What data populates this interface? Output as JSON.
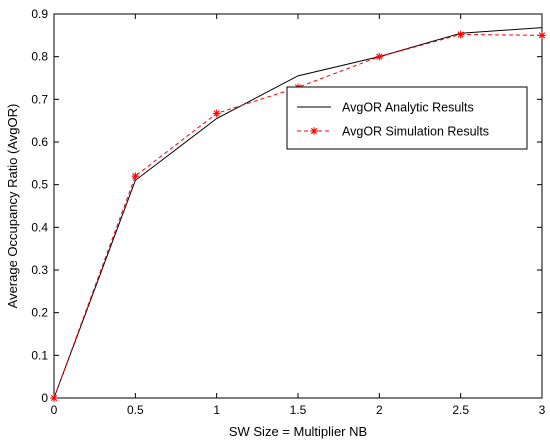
{
  "chart_data": {
    "type": "line",
    "xlabel": "SW Size = Multiplier NB",
    "ylabel": "Average Occupancy Ratio (AvgOR)",
    "xlim": [
      0,
      3
    ],
    "ylim": [
      0,
      0.9
    ],
    "x_ticks": [
      0,
      0.5,
      1,
      1.5,
      2,
      2.5,
      3
    ],
    "x_tick_labels": [
      "0",
      "0.5",
      "1",
      "1.5",
      "2",
      "2.5",
      "3"
    ],
    "y_ticks": [
      0,
      0.1,
      0.2,
      0.3,
      0.4,
      0.5,
      0.6,
      0.7,
      0.8,
      0.9
    ],
    "y_tick_labels": [
      "0",
      "0.1",
      "0.2",
      "0.3",
      "0.4",
      "0.5",
      "0.6",
      "0.7",
      "0.8",
      "0.9"
    ],
    "grid": false,
    "legend_position": "center-right",
    "x": [
      0,
      0.5,
      1,
      1.5,
      2,
      2.5,
      3
    ],
    "series": [
      {
        "name": "AvgOR Analytic Results",
        "values": [
          0,
          0.51,
          0.655,
          0.755,
          0.8,
          0.855,
          0.868
        ],
        "color": "#000000",
        "line_style": "solid",
        "marker": "none"
      },
      {
        "name": "AvgOR Simulation Results",
        "values": [
          0,
          0.52,
          0.667,
          0.728,
          0.8,
          0.852,
          0.85
        ],
        "color": "#ff0000",
        "line_style": "dashed",
        "marker": "asterisk"
      }
    ]
  }
}
